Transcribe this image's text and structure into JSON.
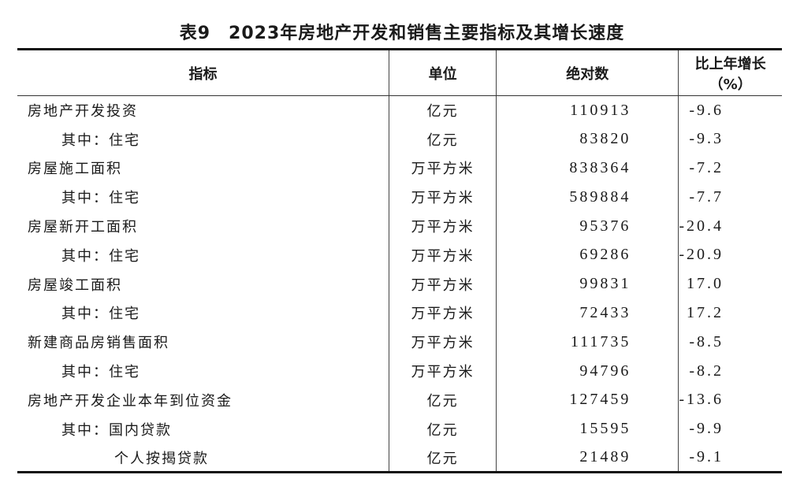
{
  "title": "表9　2023年房地产开发和销售主要指标及其增长速度",
  "headers": [
    "指标",
    "单位",
    "绝对数",
    "比上年增长（%）"
  ],
  "rows": [
    {
      "indicator": "房地产开发投资",
      "level": 0,
      "unit": "亿元",
      "value": "110913",
      "growth": "-9.6"
    },
    {
      "indicator": "其中：住宅",
      "level": 1,
      "unit": "亿元",
      "value": "83820",
      "growth": "-9.3"
    },
    {
      "indicator": "房屋施工面积",
      "level": 0,
      "unit": "万平方米",
      "value": "838364",
      "growth": "-7.2"
    },
    {
      "indicator": "其中：住宅",
      "level": 1,
      "unit": "万平方米",
      "value": "589884",
      "growth": "-7.7"
    },
    {
      "indicator": "房屋新开工面积",
      "level": 0,
      "unit": "万平方米",
      "value": "95376",
      "growth": "-20.4"
    },
    {
      "indicator": "其中：住宅",
      "level": 1,
      "unit": "万平方米",
      "value": "69286",
      "growth": "-20.9"
    },
    {
      "indicator": "房屋竣工面积",
      "level": 0,
      "unit": "万平方米",
      "value": "99831",
      "growth": "17.0"
    },
    {
      "indicator": "其中：住宅",
      "level": 1,
      "unit": "万平方米",
      "value": "72433",
      "growth": "17.2"
    },
    {
      "indicator": "新建商品房销售面积",
      "level": 0,
      "unit": "万平方米",
      "value": "111735",
      "growth": "-8.5"
    },
    {
      "indicator": "其中：住宅",
      "level": 1,
      "unit": "万平方米",
      "value": "94796",
      "growth": "-8.2"
    },
    {
      "indicator": "房地产开发企业本年到位资金",
      "level": 0,
      "unit": "亿元",
      "value": "127459",
      "growth": "-13.6"
    },
    {
      "indicator": "其中：国内贷款",
      "level": 1,
      "unit": "亿元",
      "value": "15595",
      "growth": "-9.9"
    },
    {
      "indicator": "个人按揭贷款",
      "level": 2,
      "unit": "亿元",
      "value": "21489",
      "growth": "-9.1"
    }
  ]
}
